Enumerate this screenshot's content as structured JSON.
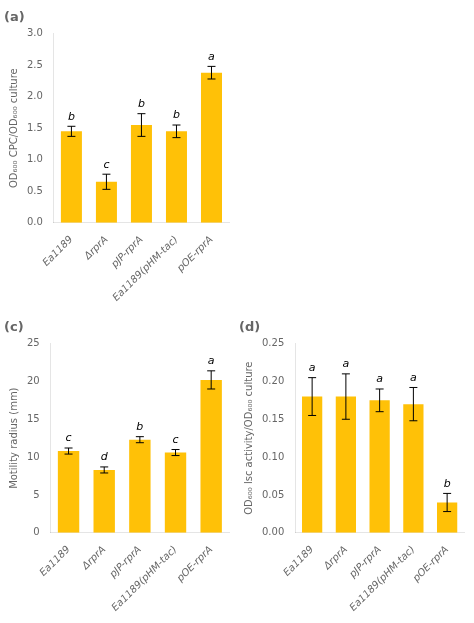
{
  "chart_data": [
    {
      "type": "bar",
      "title": "(a)",
      "categories": [
        "Ea1189",
        "ΔrprA",
        "pJP-rprA",
        "Ea1189(pHM-tac)",
        "pOE-rprA"
      ],
      "values": [
        1.45,
        0.65,
        1.55,
        1.45,
        2.38
      ],
      "errors": [
        0.08,
        0.12,
        0.18,
        0.1,
        0.1
      ],
      "annotations": [
        "b",
        "c",
        "b",
        "b",
        "a"
      ],
      "y_label": "OD₆₀₀ CPC/OD₆₀₀ culture",
      "color": "#FFC107",
      "ylim": [
        0,
        3.0
      ],
      "yticks": [
        {
          "value": 0,
          "label": "0.0"
        },
        0.5,
        {
          "value": 1.0,
          "label": "1.0"
        },
        1.5,
        {
          "value": 2.0,
          "label": "2.0"
        },
        2.5,
        {
          "value": 3.0,
          "label": "3.0"
        }
      ],
      "grid": false
    },
    {
      "type": "bar",
      "title": "(c)",
      "categories": [
        "Ea1189",
        "ΔrprA",
        "pJP-rprA",
        "Ea1189(pHM-tac)",
        "pOE-rprA"
      ],
      "values": [
        10.8,
        8.3,
        12.3,
        10.6,
        20.2
      ],
      "errors": [
        0.4,
        0.4,
        0.4,
        0.4,
        1.2
      ],
      "annotations": [
        "c",
        "d",
        "b",
        "c",
        "a"
      ],
      "y_label": "Motility radius (mm)",
      "color": "#FFC107",
      "ylim": [
        0,
        25
      ],
      "yticks": [
        0,
        5,
        10,
        15,
        20,
        25
      ],
      "grid": false
    },
    {
      "type": "bar",
      "title": "(d)",
      "categories": [
        "Ea1189",
        "ΔrprA",
        "pJP-rprA",
        "Ea1189(pHM-tac)",
        "pOE-rprA"
      ],
      "values": [
        0.18,
        0.18,
        0.175,
        0.17,
        0.04
      ],
      "errors": [
        0.025,
        0.03,
        0.015,
        0.022,
        0.012
      ],
      "annotations": [
        "a",
        "a",
        "a",
        "a",
        "b"
      ],
      "y_label": "OD₆₀₀ lsc activity/OD₆₀₀ culture",
      "color": "#FFC107",
      "ylim": [
        0,
        0.25
      ],
      "yticks": [
        {
          "value": 0,
          "label": "0.00"
        },
        0.05,
        {
          "value": 0.1,
          "label": "0.10"
        },
        0.15,
        {
          "value": 0.2,
          "label": "0.20"
        },
        0.25
      ],
      "grid": false
    }
  ]
}
